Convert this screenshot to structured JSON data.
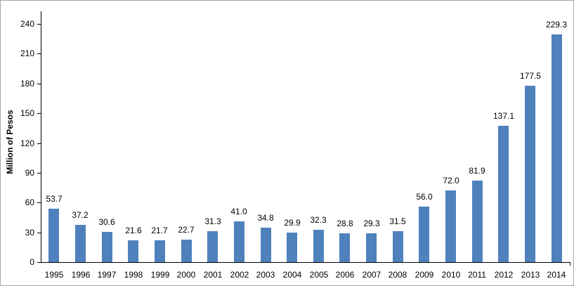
{
  "chart_data": {
    "type": "bar",
    "title": "",
    "xlabel": "",
    "ylabel": "Million of Pesos",
    "categories": [
      "1995",
      "1996",
      "1997",
      "1998",
      "1999",
      "2000",
      "2001",
      "2002",
      "2003",
      "2004",
      "2005",
      "2006",
      "2007",
      "2008",
      "2009",
      "2010",
      "2011",
      "2012",
      "2013",
      "2014"
    ],
    "values": [
      53.7,
      37.2,
      30.6,
      21.6,
      21.7,
      22.7,
      31.3,
      41.0,
      34.8,
      29.9,
      32.3,
      28.8,
      29.3,
      31.5,
      56.0,
      72.0,
      81.9,
      137.1,
      177.5,
      229.3
    ],
    "value_labels": [
      "53.7",
      "37.2",
      "30.6",
      "21.6",
      "21.7",
      "22.7",
      "31.3",
      "41.0",
      "34.8",
      "29.9",
      "32.3",
      "28.8",
      "29.3",
      "31.5",
      "56.0",
      "72.0",
      "81.9",
      "137.1",
      "177.5",
      "229.3"
    ],
    "yticks": [
      0,
      30,
      60,
      90,
      120,
      150,
      180,
      210,
      240
    ],
    "ylim": [
      0,
      240
    ],
    "grid": false,
    "legend": null,
    "bar_color": "#4F81BD",
    "axis_color": "#000000",
    "text_color": "#000000",
    "frame_border_color": "#A6A6A6"
  }
}
